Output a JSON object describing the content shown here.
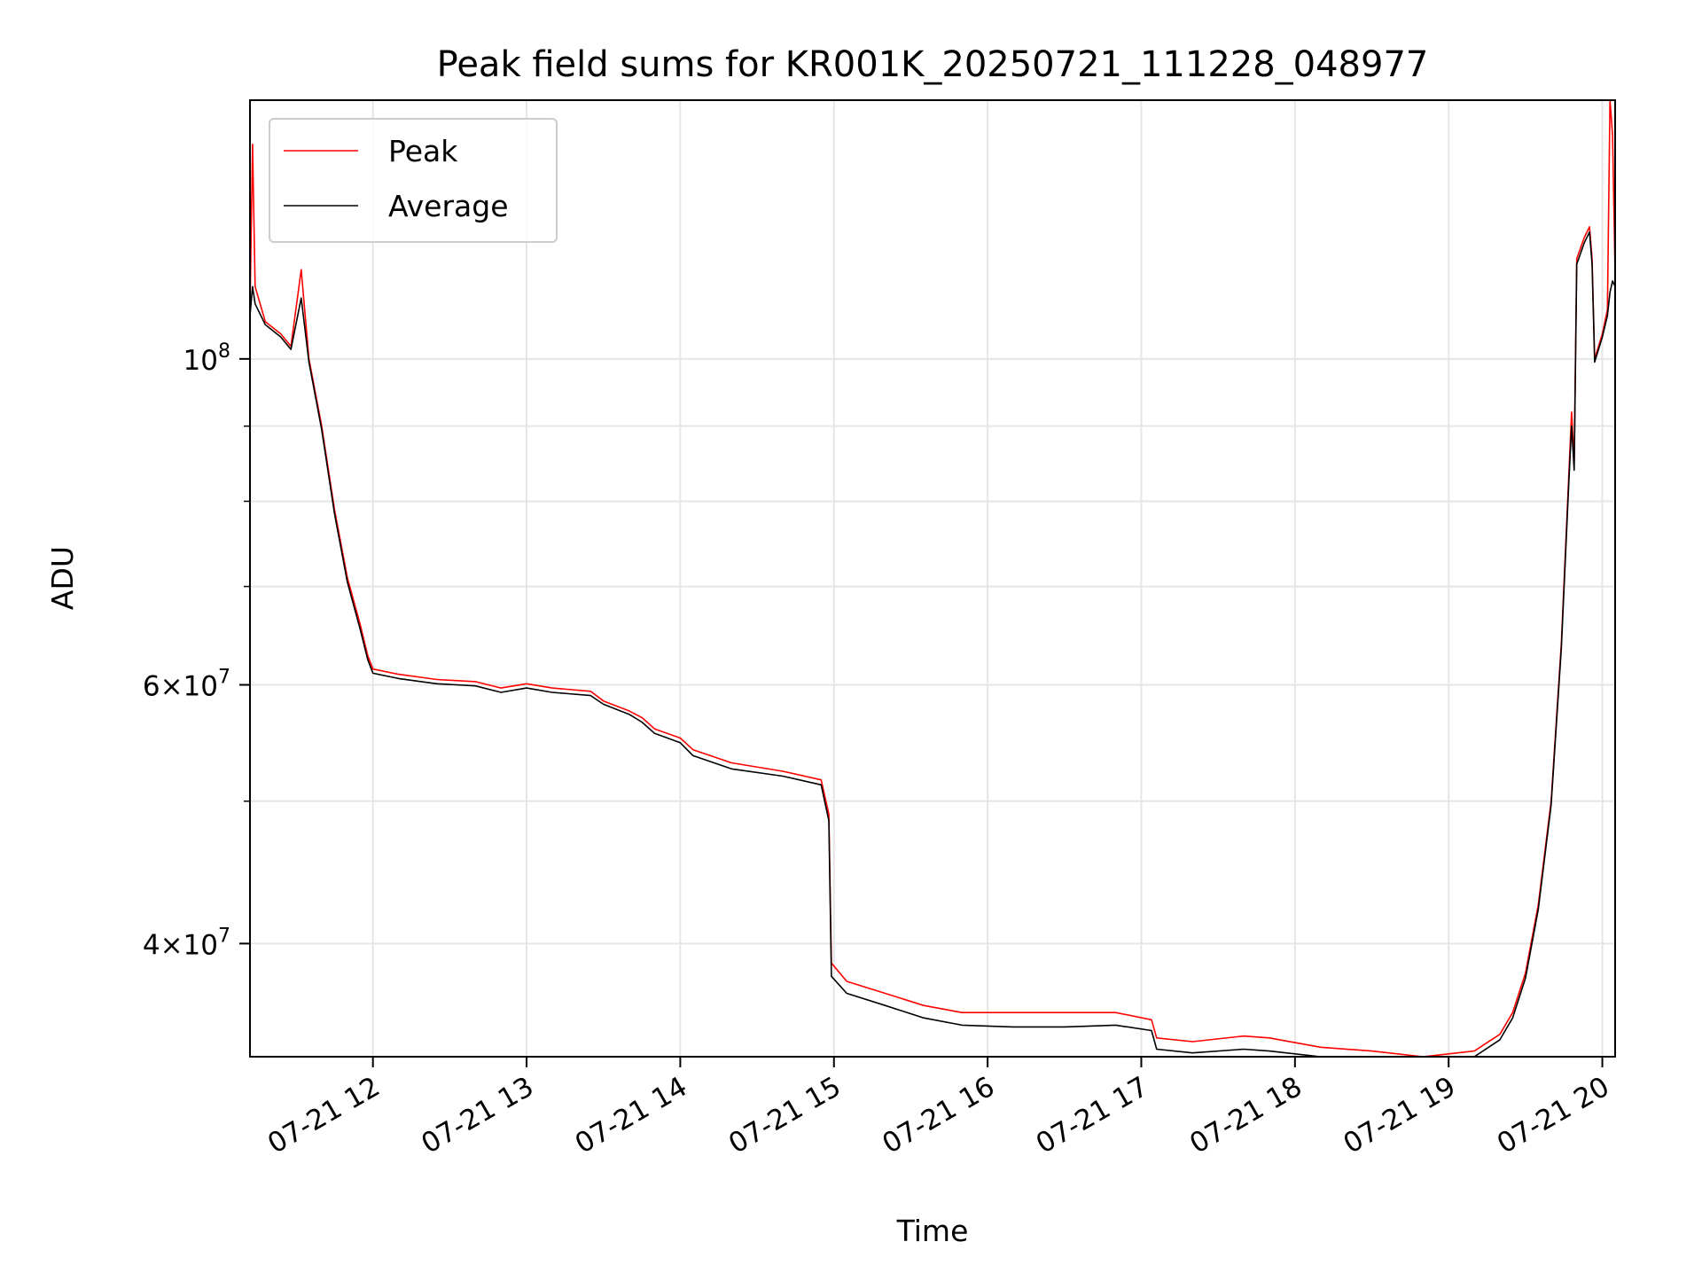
{
  "chart_data": {
    "type": "line",
    "title": "Peak field sums for KR001K_20250721_111228_048977",
    "xlabel": "Time",
    "ylabel": "ADU",
    "y_scale": "log",
    "ylim": [
      33500000,
      150000000
    ],
    "xlim": [
      "2025-07-21 11:12",
      "2025-07-21 20:05"
    ],
    "x_ticks": [
      {
        "value": "2025-07-21 12:00",
        "label": "07-21 12"
      },
      {
        "value": "2025-07-21 13:00",
        "label": "07-21 13"
      },
      {
        "value": "2025-07-21 14:00",
        "label": "07-21 14"
      },
      {
        "value": "2025-07-21 15:00",
        "label": "07-21 15"
      },
      {
        "value": "2025-07-21 16:00",
        "label": "07-21 16"
      },
      {
        "value": "2025-07-21 17:00",
        "label": "07-21 17"
      },
      {
        "value": "2025-07-21 18:00",
        "label": "07-21 18"
      },
      {
        "value": "2025-07-21 19:00",
        "label": "07-21 19"
      },
      {
        "value": "2025-07-21 20:00",
        "label": "07-21 20"
      }
    ],
    "y_ticks": [
      {
        "value": 40000000,
        "mantissa": "4",
        "exponent": "7"
      },
      {
        "value": 60000000,
        "mantissa": "6",
        "exponent": "7"
      },
      {
        "value": 100000000,
        "mantissa": "10",
        "exponent": "8"
      }
    ],
    "y_minor_ticks": [
      50000000,
      70000000,
      80000000,
      90000000
    ],
    "grid": true,
    "legend_position": "upper left",
    "series": [
      {
        "name": "Peak",
        "color": "#ff0000",
        "points": [
          [
            "2025-07-21 11:12",
            108000000
          ],
          [
            "2025-07-21 11:13",
            140000000
          ],
          [
            "2025-07-21 11:14",
            112000000
          ],
          [
            "2025-07-21 11:18",
            106000000
          ],
          [
            "2025-07-21 11:24",
            104000000
          ],
          [
            "2025-07-21 11:28",
            102000000
          ],
          [
            "2025-07-21 11:32",
            115000000
          ],
          [
            "2025-07-21 11:35",
            100000000
          ],
          [
            "2025-07-21 11:40",
            90000000
          ],
          [
            "2025-07-21 11:45",
            79000000
          ],
          [
            "2025-07-21 11:50",
            71000000
          ],
          [
            "2025-07-21 11:55",
            66000000
          ],
          [
            "2025-07-21 11:58",
            62800000
          ],
          [
            "2025-07-21 12:00",
            61500000
          ],
          [
            "2025-07-21 12:10",
            61000000
          ],
          [
            "2025-07-21 12:25",
            60500000
          ],
          [
            "2025-07-21 12:40",
            60300000
          ],
          [
            "2025-07-21 12:50",
            59700000
          ],
          [
            "2025-07-21 13:00",
            60100000
          ],
          [
            "2025-07-21 13:10",
            59700000
          ],
          [
            "2025-07-21 13:25",
            59400000
          ],
          [
            "2025-07-21 13:30",
            58500000
          ],
          [
            "2025-07-21 13:40",
            57600000
          ],
          [
            "2025-07-21 13:45",
            57000000
          ],
          [
            "2025-07-21 13:50",
            56000000
          ],
          [
            "2025-07-21 14:00",
            55200000
          ],
          [
            "2025-07-21 14:05",
            54200000
          ],
          [
            "2025-07-21 14:20",
            53100000
          ],
          [
            "2025-07-21 14:40",
            52400000
          ],
          [
            "2025-07-21 14:55",
            51700000
          ],
          [
            "2025-07-21 14:58",
            49000000
          ],
          [
            "2025-07-21 14:59",
            38800000
          ],
          [
            "2025-07-21 15:05",
            37700000
          ],
          [
            "2025-07-21 15:20",
            37000000
          ],
          [
            "2025-07-21 15:35",
            36300000
          ],
          [
            "2025-07-21 15:50",
            35900000
          ],
          [
            "2025-07-21 16:10",
            35900000
          ],
          [
            "2025-07-21 16:30",
            35900000
          ],
          [
            "2025-07-21 16:50",
            35900000
          ],
          [
            "2025-07-21 17:04",
            35500000
          ],
          [
            "2025-07-21 17:06",
            34500000
          ],
          [
            "2025-07-21 17:20",
            34300000
          ],
          [
            "2025-07-21 17:40",
            34600000
          ],
          [
            "2025-07-21 17:50",
            34500000
          ],
          [
            "2025-07-21 18:10",
            34000000
          ],
          [
            "2025-07-21 18:30",
            33800000
          ],
          [
            "2025-07-21 18:50",
            33500000
          ],
          [
            "2025-07-21 19:10",
            33800000
          ],
          [
            "2025-07-21 19:20",
            34700000
          ],
          [
            "2025-07-21 19:25",
            35900000
          ],
          [
            "2025-07-21 19:30",
            38200000
          ],
          [
            "2025-07-21 19:35",
            42500000
          ],
          [
            "2025-07-21 19:40",
            50000000
          ],
          [
            "2025-07-21 19:44",
            64000000
          ],
          [
            "2025-07-21 19:47",
            84000000
          ],
          [
            "2025-07-21 19:48",
            92000000
          ],
          [
            "2025-07-21 19:49",
            85000000
          ],
          [
            "2025-07-21 19:50",
            117000000
          ],
          [
            "2025-07-21 19:53",
            121000000
          ],
          [
            "2025-07-21 19:55",
            123000000
          ],
          [
            "2025-07-21 19:56",
            117000000
          ],
          [
            "2025-07-21 19:57",
            100000000
          ],
          [
            "2025-07-21 20:00",
            104000000
          ],
          [
            "2025-07-21 20:02",
            108000000
          ],
          [
            "2025-07-21 20:03",
            150000000
          ],
          [
            "2025-07-21 20:04",
            142000000
          ],
          [
            "2025-07-21 20:05",
            114000000
          ]
        ]
      },
      {
        "name": "Average",
        "color": "#000000",
        "points": [
          [
            "2025-07-21 11:12",
            107000000
          ],
          [
            "2025-07-21 11:13",
            112000000
          ],
          [
            "2025-07-21 11:14",
            109000000
          ],
          [
            "2025-07-21 11:18",
            105500000
          ],
          [
            "2025-07-21 11:24",
            103500000
          ],
          [
            "2025-07-21 11:28",
            101500000
          ],
          [
            "2025-07-21 11:32",
            110000000
          ],
          [
            "2025-07-21 11:35",
            99500000
          ],
          [
            "2025-07-21 11:40",
            89500000
          ],
          [
            "2025-07-21 11:45",
            78500000
          ],
          [
            "2025-07-21 11:50",
            70500000
          ],
          [
            "2025-07-21 11:55",
            65500000
          ],
          [
            "2025-07-21 11:58",
            62400000
          ],
          [
            "2025-07-21 12:00",
            61100000
          ],
          [
            "2025-07-21 12:10",
            60600000
          ],
          [
            "2025-07-21 12:25",
            60100000
          ],
          [
            "2025-07-21 12:40",
            59900000
          ],
          [
            "2025-07-21 12:50",
            59300000
          ],
          [
            "2025-07-21 13:00",
            59700000
          ],
          [
            "2025-07-21 13:10",
            59300000
          ],
          [
            "2025-07-21 13:25",
            59000000
          ],
          [
            "2025-07-21 13:30",
            58200000
          ],
          [
            "2025-07-21 13:40",
            57300000
          ],
          [
            "2025-07-21 13:45",
            56600000
          ],
          [
            "2025-07-21 13:50",
            55600000
          ],
          [
            "2025-07-21 14:00",
            54800000
          ],
          [
            "2025-07-21 14:05",
            53700000
          ],
          [
            "2025-07-21 14:20",
            52600000
          ],
          [
            "2025-07-21 14:40",
            52000000
          ],
          [
            "2025-07-21 14:55",
            51300000
          ],
          [
            "2025-07-21 14:58",
            48500000
          ],
          [
            "2025-07-21 14:59",
            38000000
          ],
          [
            "2025-07-21 15:05",
            37000000
          ],
          [
            "2025-07-21 15:20",
            36300000
          ],
          [
            "2025-07-21 15:35",
            35600000
          ],
          [
            "2025-07-21 15:50",
            35200000
          ],
          [
            "2025-07-21 16:10",
            35100000
          ],
          [
            "2025-07-21 16:30",
            35100000
          ],
          [
            "2025-07-21 16:50",
            35200000
          ],
          [
            "2025-07-21 17:04",
            34900000
          ],
          [
            "2025-07-21 17:06",
            33900000
          ],
          [
            "2025-07-21 17:20",
            33700000
          ],
          [
            "2025-07-21 17:40",
            33900000
          ],
          [
            "2025-07-21 17:50",
            33800000
          ],
          [
            "2025-07-21 18:10",
            33500000
          ],
          [
            "2025-07-21 18:30",
            33400000
          ],
          [
            "2025-07-21 18:50",
            33200000
          ],
          [
            "2025-07-21 19:10",
            33500000
          ],
          [
            "2025-07-21 19:20",
            34400000
          ],
          [
            "2025-07-21 19:25",
            35600000
          ],
          [
            "2025-07-21 19:30",
            37900000
          ],
          [
            "2025-07-21 19:35",
            42200000
          ],
          [
            "2025-07-21 19:40",
            49700000
          ],
          [
            "2025-07-21 19:44",
            63500000
          ],
          [
            "2025-07-21 19:47",
            83000000
          ],
          [
            "2025-07-21 19:48",
            90000000
          ],
          [
            "2025-07-21 19:49",
            84000000
          ],
          [
            "2025-07-21 19:50",
            116000000
          ],
          [
            "2025-07-21 19:53",
            120000000
          ],
          [
            "2025-07-21 19:55",
            122000000
          ],
          [
            "2025-07-21 19:56",
            116000000
          ],
          [
            "2025-07-21 19:57",
            99500000
          ],
          [
            "2025-07-21 20:00",
            103500000
          ],
          [
            "2025-07-21 20:02",
            107000000
          ],
          [
            "2025-07-21 20:03",
            111000000
          ],
          [
            "2025-07-21 20:04",
            113000000
          ],
          [
            "2025-07-21 20:05",
            112000000
          ]
        ]
      }
    ]
  }
}
